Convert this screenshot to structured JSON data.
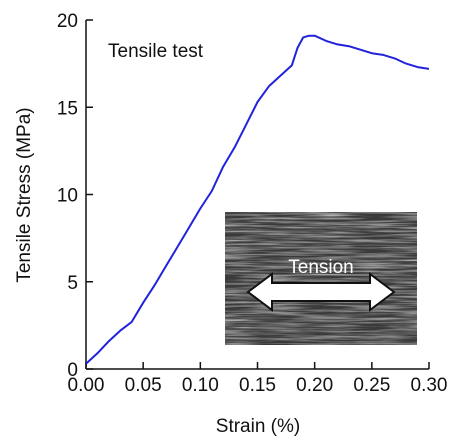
{
  "chart_data": {
    "type": "line",
    "title": "",
    "annotation": "Tensile test",
    "xlabel": "Strain (%)",
    "ylabel": "Tensile Stress (MPa)",
    "xlim": [
      0.0,
      0.3
    ],
    "ylim": [
      0,
      20
    ],
    "xticks": [
      "0.00",
      "0.05",
      "0.10",
      "0.15",
      "0.20",
      "0.25",
      "0.30"
    ],
    "yticks": [
      "0",
      "5",
      "10",
      "15",
      "20"
    ],
    "grid": false,
    "line_color": "#2222dd",
    "series": [
      {
        "x": [
          0.0,
          0.005,
          0.01,
          0.02,
          0.03,
          0.04,
          0.05,
          0.06,
          0.07,
          0.08,
          0.09,
          0.1,
          0.11,
          0.12,
          0.13,
          0.14,
          0.15,
          0.16,
          0.17,
          0.18,
          0.185,
          0.19,
          0.195,
          0.2,
          0.21,
          0.22,
          0.23,
          0.24,
          0.25,
          0.26,
          0.27,
          0.28,
          0.29,
          0.3
        ],
        "y": [
          0.3,
          0.6,
          0.9,
          1.6,
          2.2,
          2.7,
          3.8,
          4.8,
          5.9,
          7.0,
          8.1,
          9.2,
          10.2,
          11.6,
          12.7,
          14.0,
          15.3,
          16.2,
          16.8,
          17.4,
          18.4,
          19.0,
          19.1,
          19.1,
          18.8,
          18.6,
          18.5,
          18.3,
          18.1,
          18.0,
          17.8,
          17.5,
          17.3,
          17.2
        ]
      }
    ],
    "inset": {
      "label": "Tension",
      "description_icon": "double-arrow-icon"
    }
  }
}
